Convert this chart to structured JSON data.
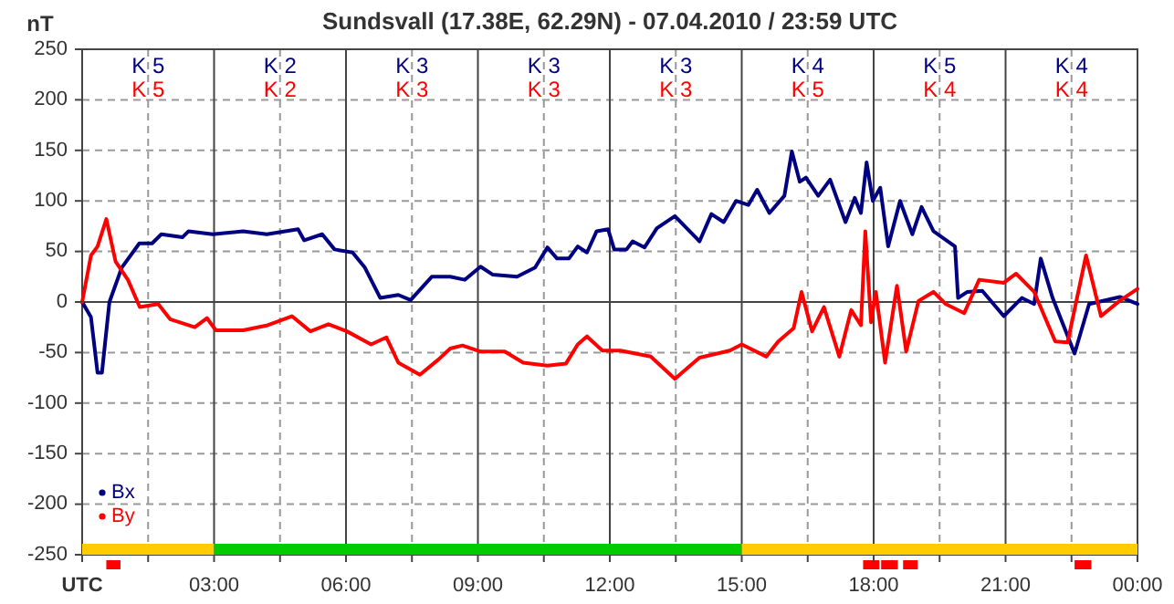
{
  "chart_data": {
    "type": "line",
    "title": "Sundsvall (17.38E, 62.29N) - 07.04.2010 / 23:59 UTC",
    "ylabel": "nT",
    "xlim": [
      0,
      24
    ],
    "xticks": [
      {
        "value": 0,
        "label": "UTC"
      },
      {
        "value": 1.5,
        "label": null
      },
      {
        "value": 3,
        "label": "03:00"
      },
      {
        "value": 4.5,
        "label": null
      },
      {
        "value": 6,
        "label": "06:00"
      },
      {
        "value": 7.5,
        "label": null
      },
      {
        "value": 9,
        "label": "09:00"
      },
      {
        "value": 10.5,
        "label": null
      },
      {
        "value": 12,
        "label": "12:00"
      },
      {
        "value": 13.5,
        "label": null
      },
      {
        "value": 15,
        "label": "15:00"
      },
      {
        "value": 16.5,
        "label": null
      },
      {
        "value": 18,
        "label": "18:00"
      },
      {
        "value": 19.5,
        "label": null
      },
      {
        "value": 21,
        "label": "21:00"
      },
      {
        "value": 22.5,
        "label": null
      },
      {
        "value": 24,
        "label": "00:00"
      }
    ],
    "ylim": [
      -250,
      250
    ],
    "yticks": [
      -250,
      -200,
      -150,
      -100,
      -50,
      0,
      50,
      100,
      150,
      200,
      250
    ],
    "grid": true,
    "legend": "bottom left",
    "line_style": "solid",
    "series": [
      {
        "name": "Bx",
        "color": "#000080",
        "x": [
          0,
          0.2,
          0.35,
          0.45,
          0.62,
          0.9,
          1.3,
          1.59,
          1.8,
          2.28,
          2.42,
          2.97,
          3.66,
          4.2,
          4.91,
          5.05,
          5.46,
          5.74,
          6.15,
          6.43,
          6.78,
          7.19,
          7.47,
          7.95,
          8.37,
          8.7,
          9.06,
          9.34,
          9.89,
          10.3,
          10.58,
          10.8,
          11.07,
          11.27,
          11.48,
          11.7,
          11.96,
          12.1,
          12.38,
          12.52,
          12.79,
          13.07,
          13.48,
          14.04,
          14.31,
          14.59,
          14.87,
          15.15,
          15.35,
          15.63,
          15.97,
          16.14,
          16.32,
          16.46,
          16.74,
          17.01,
          17.36,
          17.57,
          17.71,
          17.84,
          17.98,
          18.15,
          18.33,
          18.6,
          18.88,
          19.09,
          19.36,
          19.85,
          19.92,
          20.13,
          20.47,
          20.96,
          21.37,
          21.65,
          21.8,
          22.07,
          22.57,
          22.9,
          23.6,
          24
        ],
        "values": [
          0,
          -15,
          -70,
          -70,
          0,
          34,
          58,
          58,
          67,
          64,
          70,
          67,
          70,
          67,
          72,
          61,
          67,
          52,
          49,
          34,
          4,
          7,
          2,
          25,
          25,
          22,
          35,
          27,
          25,
          34,
          54,
          43,
          43,
          55,
          49,
          70,
          72,
          52,
          52,
          60,
          54,
          73,
          85,
          60,
          87,
          79,
          100,
          96,
          111,
          88,
          105,
          149,
          119,
          123,
          105,
          121,
          79,
          103,
          88,
          138,
          100,
          113,
          55,
          100,
          67,
          94,
          70,
          55,
          4,
          10,
          11,
          -14,
          4,
          -2,
          43,
          4,
          -51,
          -2,
          5,
          -2
        ]
      },
      {
        "name": "By",
        "color": "#ff0000",
        "x": [
          0,
          0.2,
          0.35,
          0.55,
          0.76,
          1.04,
          1.31,
          1.73,
          2.0,
          2.56,
          2.84,
          3.04,
          3.66,
          4.22,
          4.77,
          5.19,
          5.6,
          6.02,
          6.57,
          6.92,
          7.19,
          7.68,
          8.1,
          8.37,
          8.65,
          9.06,
          9.61,
          10.03,
          10.58,
          11.0,
          11.27,
          11.48,
          11.83,
          12.24,
          12.93,
          13.48,
          14.04,
          14.73,
          15.0,
          15.56,
          15.83,
          16.18,
          16.36,
          16.6,
          16.87,
          17.22,
          17.49,
          17.71,
          17.81,
          17.94,
          18.05,
          18.26,
          18.53,
          18.74,
          19.02,
          19.36,
          19.64,
          20.06,
          20.4,
          20.96,
          21.24,
          21.65,
          22.13,
          22.41,
          22.83,
          23.17,
          23.59,
          24
        ],
        "values": [
          0,
          46,
          55,
          82,
          40,
          22,
          -5,
          -2,
          -17,
          -25,
          -16,
          -28,
          -28,
          -23,
          -14,
          -29,
          -22,
          -29,
          -42,
          -35,
          -60,
          -72,
          -57,
          -46,
          -43,
          -49,
          -49,
          -60,
          -63,
          -61,
          -42,
          -34,
          -48,
          -48,
          -54,
          -76,
          -55,
          -48,
          -42,
          -54,
          -39,
          -26,
          10,
          -29,
          -5,
          -54,
          -8,
          -23,
          70,
          -20,
          10,
          -60,
          16,
          -49,
          1,
          10,
          -2,
          -11,
          22,
          19,
          28,
          10,
          -39,
          -40,
          46,
          -14,
          1,
          13
        ]
      }
    ],
    "annotations": [
      "K 5",
      "K 5",
      "K 2",
      "K 2",
      "K 3",
      "K 3",
      "K 3",
      "K 3",
      "K 3",
      "K 3",
      "K 4",
      "K 5",
      "K 5",
      "K 4",
      "K 4",
      "K 4"
    ]
  }
}
